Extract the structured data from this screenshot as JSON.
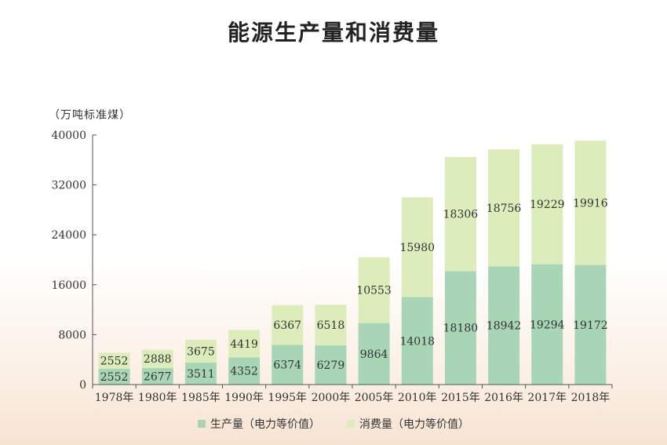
{
  "colors": {
    "production": "#a8d5b6",
    "consumption": "#dcedbb",
    "axis": "#555555",
    "text": "#333333"
  },
  "chart_data": {
    "type": "bar",
    "stacked": true,
    "title": "能源生产量和消费量",
    "unit_label": "（万吨标准煤）",
    "categories": [
      "1978年",
      "1980年",
      "1985年",
      "1990年",
      "1995年",
      "2000年",
      "2005年",
      "2010年",
      "2015年",
      "2016年",
      "2017年",
      "2018年"
    ],
    "series": [
      {
        "name": "生产量（电力等价值）",
        "values": [
          2552,
          2677,
          3511,
          4352,
          6374,
          6279,
          9864,
          14018,
          18180,
          18942,
          19294,
          19172
        ]
      },
      {
        "name": "消费量（电力等价值）",
        "values": [
          2552,
          2888,
          3675,
          4419,
          6367,
          6518,
          10553,
          15980,
          18306,
          18756,
          19229,
          19916
        ]
      }
    ],
    "yticks": [
      0,
      8000,
      16000,
      24000,
      32000,
      40000
    ],
    "ylim": [
      0,
      40000
    ],
    "grid": false,
    "legend_position": "bottom-center"
  }
}
